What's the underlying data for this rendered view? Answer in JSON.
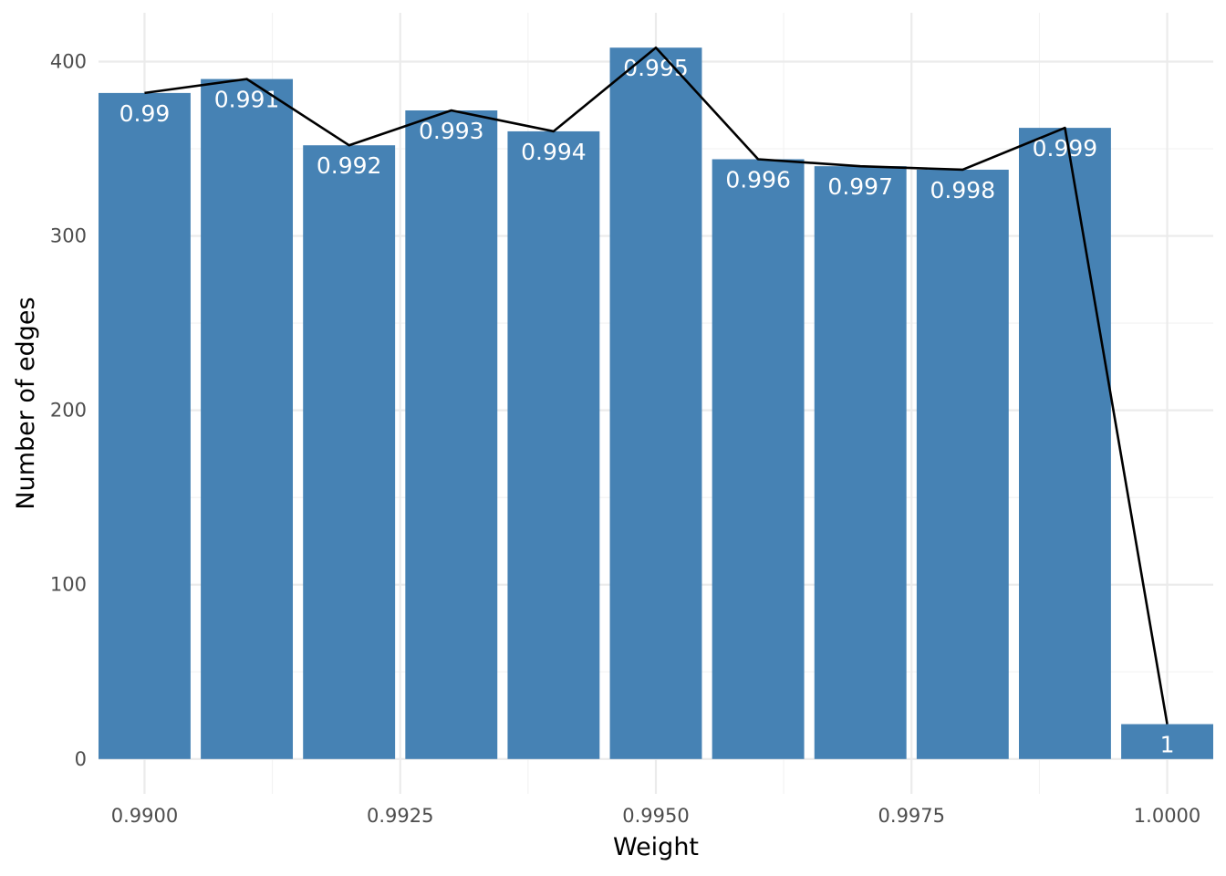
{
  "chart_data": {
    "type": "bar",
    "xlabel": "Weight",
    "ylabel": "Number of edges",
    "x": [
      0.99,
      0.991,
      0.992,
      0.993,
      0.994,
      0.995,
      0.996,
      0.997,
      0.998,
      0.999,
      1.0
    ],
    "bar_labels": [
      "0.99",
      "0.991",
      "0.992",
      "0.993",
      "0.994",
      "0.995",
      "0.996",
      "0.997",
      "0.998",
      "0.999",
      "1"
    ],
    "values": [
      382,
      390,
      352,
      372,
      360,
      408,
      344,
      340,
      338,
      362,
      20
    ],
    "line_overlay": {
      "x": [
        0.99,
        0.991,
        0.992,
        0.993,
        0.994,
        0.995,
        0.996,
        0.997,
        0.998,
        0.999,
        1.0
      ],
      "values": [
        382,
        390,
        352,
        372,
        360,
        408,
        344,
        340,
        338,
        362,
        20
      ]
    },
    "xticks": [
      "0.9900",
      "0.9925",
      "0.9950",
      "0.9975",
      "1.0000"
    ],
    "xtick_values": [
      0.99,
      0.9925,
      0.995,
      0.9975,
      1.0
    ],
    "yticks": [
      "0",
      "100",
      "200",
      "300",
      "400"
    ],
    "ytick_values": [
      0,
      100,
      200,
      300,
      400
    ],
    "xlim": [
      0.98955,
      1.00045
    ],
    "ylim": [
      -20,
      428
    ],
    "bar_width": 0.0009,
    "grid": true,
    "legend": "none",
    "colors": {
      "bar": "#4682b4",
      "line": "#000000",
      "bar_label": "#ffffff",
      "grid": "#ebebeb"
    }
  }
}
